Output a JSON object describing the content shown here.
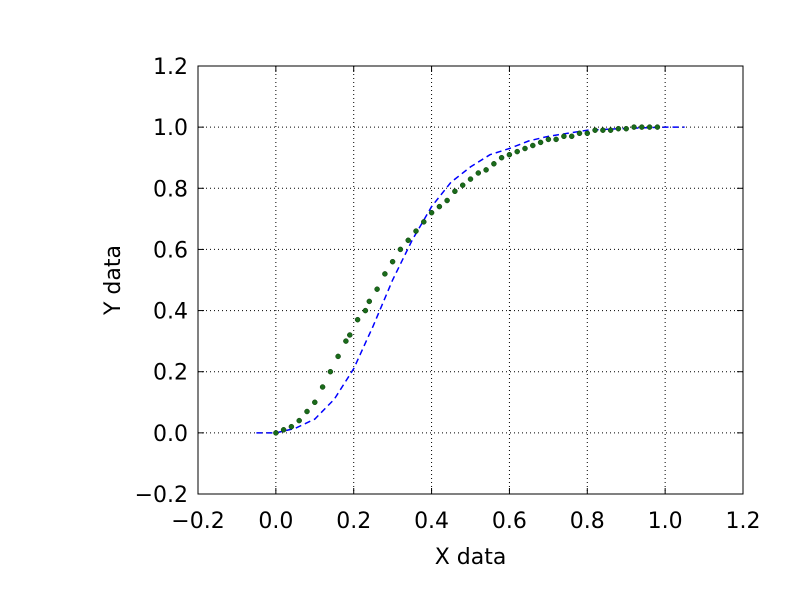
{
  "chart_data": {
    "type": "scatter",
    "xlabel": "X data",
    "ylabel": "Y data",
    "xlim": [
      -0.2,
      1.2
    ],
    "ylim": [
      -0.2,
      1.2
    ],
    "x_ticks": [
      "−0.2",
      "0.0",
      "0.2",
      "0.4",
      "0.6",
      "0.8",
      "1.0",
      "1.2"
    ],
    "y_ticks": [
      "−0.2",
      "0.0",
      "0.2",
      "0.4",
      "0.6",
      "0.8",
      "1.0",
      "1.2"
    ],
    "grid": true,
    "colors": {
      "scatter": "#1a6b1a",
      "fit_line": "#0000ff",
      "frame": "#000000",
      "grid": "#000000"
    },
    "series": [
      {
        "kind": "scatter",
        "x": [
          0.0,
          0.02,
          0.04,
          0.06,
          0.08,
          0.1,
          0.12,
          0.14,
          0.16,
          0.18,
          0.19,
          0.21,
          0.23,
          0.24,
          0.26,
          0.28,
          0.3,
          0.32,
          0.34,
          0.36,
          0.38,
          0.4,
          0.42,
          0.44,
          0.46,
          0.48,
          0.5,
          0.52,
          0.54,
          0.56,
          0.58,
          0.6,
          0.62,
          0.64,
          0.66,
          0.68,
          0.7,
          0.72,
          0.74,
          0.76,
          0.78,
          0.8,
          0.82,
          0.84,
          0.86,
          0.88,
          0.9,
          0.92,
          0.94,
          0.96,
          0.98
        ],
        "y": [
          0.0,
          0.01,
          0.02,
          0.04,
          0.07,
          0.1,
          0.15,
          0.2,
          0.25,
          0.3,
          0.32,
          0.37,
          0.4,
          0.43,
          0.47,
          0.52,
          0.56,
          0.6,
          0.63,
          0.66,
          0.69,
          0.72,
          0.74,
          0.76,
          0.79,
          0.81,
          0.83,
          0.85,
          0.86,
          0.88,
          0.9,
          0.91,
          0.92,
          0.93,
          0.94,
          0.95,
          0.96,
          0.96,
          0.97,
          0.97,
          0.98,
          0.98,
          0.99,
          0.99,
          0.99,
          0.995,
          0.995,
          1.0,
          1.0,
          1.0,
          1.0
        ]
      },
      {
        "kind": "line",
        "style": "dashed",
        "x": [
          -0.05,
          0.0,
          0.05,
          0.1,
          0.15,
          0.2,
          0.25,
          0.3,
          0.35,
          0.4,
          0.45,
          0.5,
          0.55,
          0.6,
          0.65,
          0.7,
          0.75,
          0.8,
          0.85,
          0.9,
          0.95,
          1.0,
          1.05
        ],
        "y": [
          0.0,
          0.0,
          0.015,
          0.045,
          0.11,
          0.21,
          0.35,
          0.5,
          0.63,
          0.74,
          0.82,
          0.87,
          0.91,
          0.93,
          0.955,
          0.97,
          0.98,
          0.99,
          0.993,
          0.996,
          0.998,
          1.0,
          1.0
        ]
      }
    ]
  }
}
